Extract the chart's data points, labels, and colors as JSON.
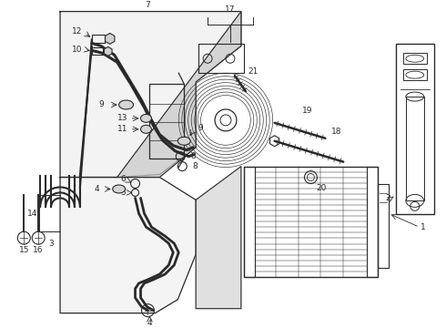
{
  "fig_w": 4.9,
  "fig_h": 3.6,
  "dpi": 100,
  "lc": "#2a2a2a",
  "bg": "#ffffff",
  "fs": 6.5,
  "lw": 0.8
}
